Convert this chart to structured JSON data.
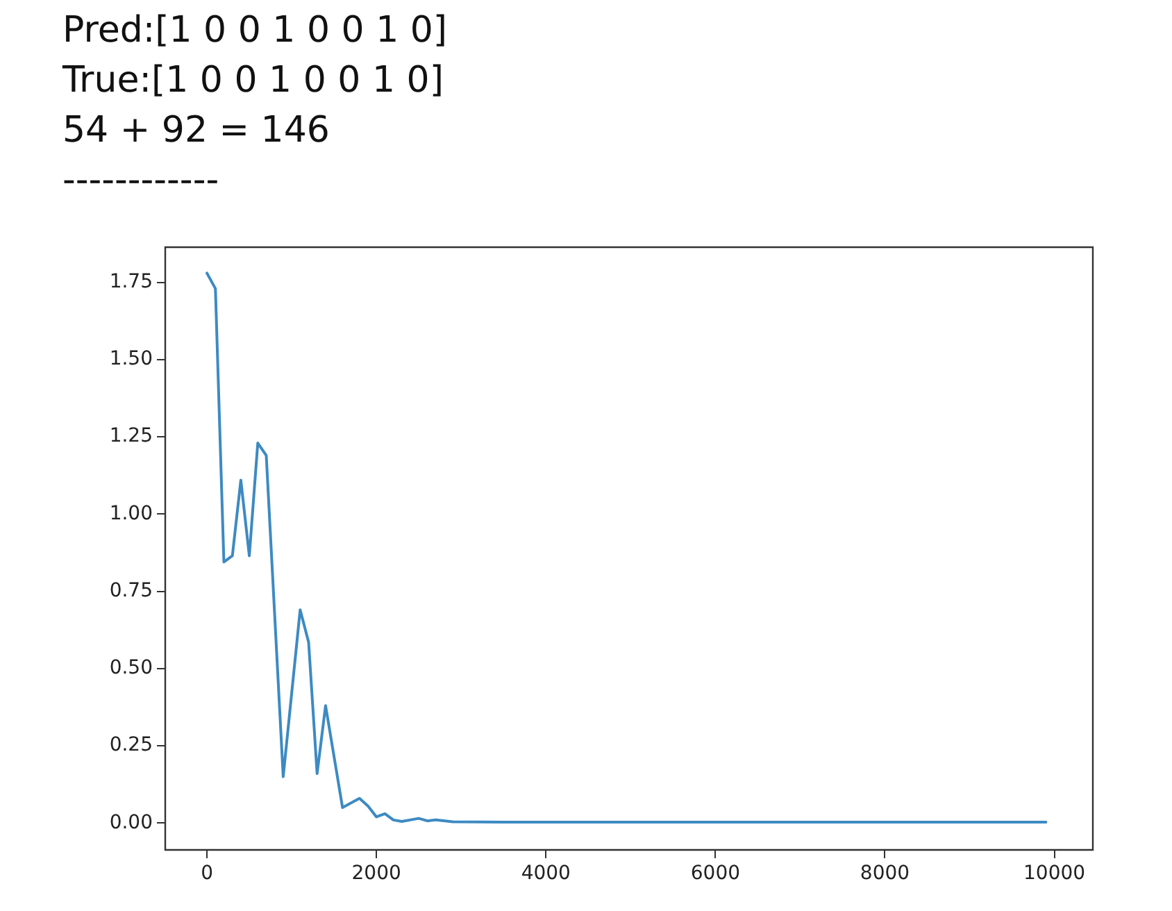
{
  "chart_data": {
    "type": "line",
    "annotations": [
      "Pred:[1 0 0 1 0 0 1 0]",
      "True:[1 0 0 1 0 0 1 0]",
      "54 + 92 = 146",
      "------------"
    ],
    "x": [
      0,
      100,
      200,
      300,
      400,
      500,
      600,
      700,
      900,
      1100,
      1200,
      1300,
      1400,
      1600,
      1800,
      1900,
      2000,
      2100,
      2200,
      2300,
      2500,
      2600,
      2700,
      2900,
      3500,
      4500,
      6000,
      8000,
      9900
    ],
    "series": [
      {
        "color": "#3d8ac2",
        "values": [
          1.78,
          1.73,
          0.845,
          0.865,
          1.11,
          0.865,
          1.23,
          1.19,
          0.15,
          0.69,
          0.585,
          0.16,
          0.38,
          0.05,
          0.08,
          0.055,
          0.02,
          0.03,
          0.01,
          0.005,
          0.015,
          0.007,
          0.01,
          0.004,
          0.003,
          0.003,
          0.003,
          0.003,
          0.003
        ]
      }
    ],
    "xlim": [
      -492,
      10454
    ],
    "xticks": [
      0,
      2000,
      4000,
      6000,
      8000,
      10000
    ],
    "ylim": [
      -0.087,
      1.864
    ],
    "yticks": [
      {
        "value": 0,
        "label": "0.00"
      },
      {
        "value": 0.25,
        "label": "0.25"
      },
      {
        "value": 0.5,
        "label": "0.50"
      },
      {
        "value": 0.75,
        "label": "0.75"
      },
      {
        "value": 1,
        "label": "1.00"
      },
      {
        "value": 1.25,
        "label": "1.25"
      },
      {
        "value": 1.5,
        "label": "1.50"
      },
      {
        "value": 1.75,
        "label": "1.75"
      }
    ],
    "grid": false,
    "legend": false,
    "marker": "none",
    "line_style": "solid"
  }
}
